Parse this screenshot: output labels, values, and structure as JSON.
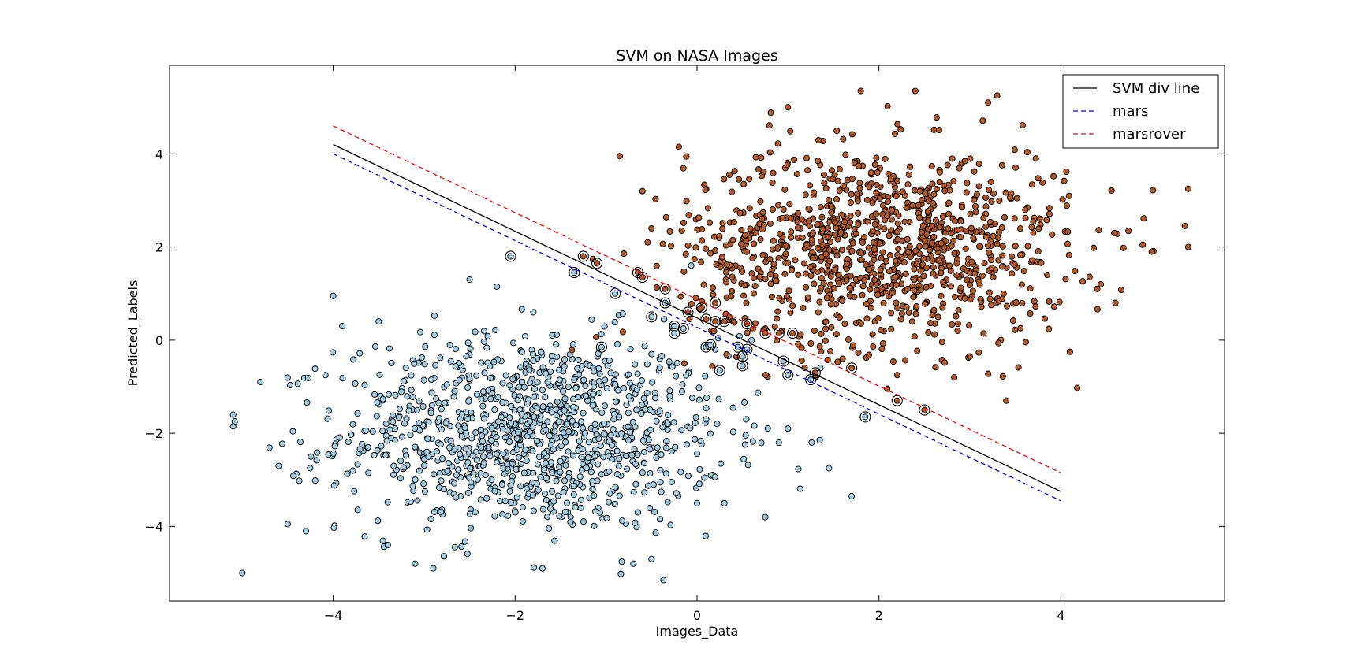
{
  "chart_data": {
    "type": "scatter",
    "title": "SVM on NASA Images",
    "xlabel": "Images_Data",
    "ylabel": "Predicted_Labels",
    "xlim": [
      -5.8,
      5.8
    ],
    "ylim": [
      -5.6,
      5.9
    ],
    "xticks": [
      -4,
      -2,
      0,
      2,
      4
    ],
    "yticks": [
      -4,
      -2,
      0,
      2,
      4
    ],
    "tick_labels": {
      "x": [
        "−4",
        "−2",
        "0",
        "2",
        "4"
      ],
      "y": [
        "−4",
        "−2",
        "0",
        "2",
        "4"
      ]
    },
    "grid": false,
    "legend_position": "top-right",
    "lines": [
      {
        "name": "SVM div line",
        "color": "#000000",
        "style": "solid",
        "x": [
          -4,
          4
        ],
        "y": [
          4.2,
          -3.25
        ]
      },
      {
        "name": "mars",
        "color": "#0000ff",
        "style": "dashed",
        "x": [
          -4,
          4
        ],
        "y": [
          4.0,
          -3.45
        ]
      },
      {
        "name": "marsrover",
        "color": "#ff0000",
        "style": "dashed",
        "x": [
          -4,
          4
        ],
        "y": [
          4.6,
          -2.85
        ]
      }
    ],
    "clusters": [
      {
        "class": "mars",
        "color": "#a6cee3",
        "center": [
          -1.8,
          -2.0
        ],
        "std": [
          1.05,
          1.05
        ],
        "n": 1100
      },
      {
        "class": "marsrover",
        "color": "#b15928",
        "center": [
          2.0,
          2.0
        ],
        "std": [
          1.05,
          1.05
        ],
        "n": 1100
      }
    ],
    "points_class_a": [
      [
        -5.0,
        -5.0
      ],
      [
        -4.8,
        -0.9
      ],
      [
        -5.1,
        -1.6
      ],
      [
        -5.1,
        -1.85
      ],
      [
        -4.6,
        -2.7
      ],
      [
        -4.5,
        -3.95
      ],
      [
        -4.3,
        -4.1
      ],
      [
        -4.0,
        0.95
      ],
      [
        -3.9,
        0.3
      ],
      [
        -3.5,
        0.4
      ],
      [
        -2.5,
        1.3
      ],
      [
        -2.2,
        1.15
      ],
      [
        -1.8,
        0.6
      ],
      [
        -0.7,
        -4.8
      ],
      [
        -0.5,
        -4.7
      ],
      [
        -1.7,
        -4.9
      ],
      [
        -2.9,
        -4.9
      ],
      [
        -3.1,
        -4.8
      ],
      [
        -3.4,
        -4.4
      ],
      [
        0.0,
        -3.5
      ],
      [
        0.3,
        -3.5
      ],
      [
        0.9,
        -2.2
      ],
      [
        1.0,
        -1.9
      ],
      [
        0.75,
        -3.8
      ],
      [
        1.45,
        -2.75
      ],
      [
        1.7,
        -3.35
      ],
      [
        0.2,
        -0.2
      ],
      [
        0.6,
        0.0
      ],
      [
        0.4,
        0.4
      ],
      [
        -0.5,
        -0.3
      ],
      [
        0.1,
        -1.7
      ],
      [
        -0.3,
        -1.2
      ]
    ],
    "points_class_b": [
      [
        1.8,
        5.35
      ],
      [
        2.4,
        5.35
      ],
      [
        3.3,
        5.25
      ],
      [
        3.2,
        5.1
      ],
      [
        1.0,
        5.0
      ],
      [
        5.4,
        3.25
      ],
      [
        5.4,
        2.0
      ],
      [
        -0.85,
        3.95
      ],
      [
        -0.6,
        3.2
      ],
      [
        -0.5,
        2.4
      ],
      [
        -0.2,
        4.15
      ],
      [
        4.1,
        -0.25
      ],
      [
        3.4,
        -1.3
      ],
      [
        1.6,
        -0.4
      ],
      [
        2.2,
        -0.75
      ],
      [
        3.0,
        -0.35
      ],
      [
        5.0,
        1.9
      ],
      [
        4.9,
        2.05
      ],
      [
        4.6,
        0.8
      ],
      [
        4.4,
        1.1
      ]
    ],
    "support_vectors": [
      [
        -2.05,
        1.8
      ],
      [
        -1.35,
        1.45
      ],
      [
        -1.25,
        1.8
      ],
      [
        -1.1,
        1.65
      ],
      [
        -0.9,
        1.0
      ],
      [
        -0.65,
        1.45
      ],
      [
        -0.6,
        1.35
      ],
      [
        -0.35,
        1.1
      ],
      [
        -0.35,
        0.8
      ],
      [
        -0.5,
        0.5
      ],
      [
        -0.25,
        0.3
      ],
      [
        -0.25,
        0.15
      ],
      [
        -0.15,
        0.25
      ],
      [
        -0.1,
        0.6
      ],
      [
        0.05,
        0.7
      ],
      [
        0.2,
        0.8
      ],
      [
        0.1,
        0.45
      ],
      [
        0.2,
        0.4
      ],
      [
        0.3,
        0.4
      ],
      [
        0.55,
        0.35
      ],
      [
        0.75,
        0.15
      ],
      [
        0.9,
        0.15
      ],
      [
        1.05,
        0.15
      ],
      [
        0.1,
        -0.15
      ],
      [
        0.15,
        -0.1
      ],
      [
        0.45,
        -0.15
      ],
      [
        0.55,
        -0.2
      ],
      [
        0.5,
        -0.35
      ],
      [
        0.5,
        -0.55
      ],
      [
        0.25,
        -0.65
      ],
      [
        0.95,
        -0.45
      ],
      [
        1.0,
        -0.75
      ],
      [
        1.25,
        -0.85
      ],
      [
        1.3,
        -0.7
      ],
      [
        1.7,
        -0.6
      ],
      [
        2.2,
        -1.3
      ],
      [
        1.85,
        -1.65
      ],
      [
        2.5,
        -1.5
      ],
      [
        -1.05,
        -0.15
      ]
    ],
    "legend_entries": [
      "SVM div line",
      "mars",
      "marsrover"
    ]
  }
}
